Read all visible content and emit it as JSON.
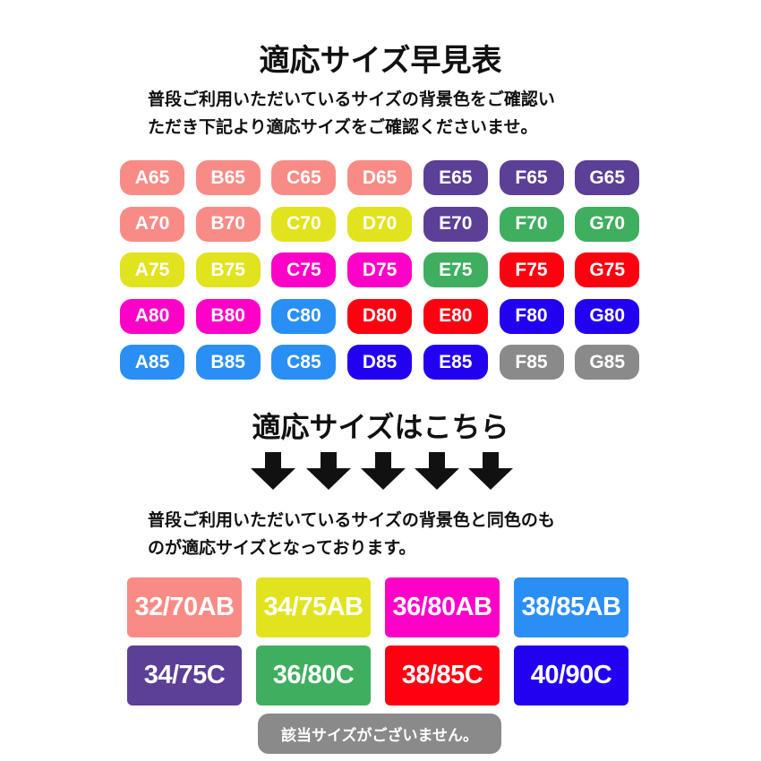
{
  "title": "適応サイズ早見表",
  "intro": [
    "普段ご利用いただいているサイズの背景色をご確認い",
    "ただき下記より適応サイズをご確認くださいませ。"
  ],
  "colors": {
    "pink": "#f98b86",
    "yellow": "#e1e31f",
    "magenta": "#ff00c8",
    "blue": "#2a8ff5",
    "purple": "#5c3f96",
    "green": "#3fae5f",
    "red": "#ff0011",
    "navy": "#2200f0",
    "gray": "#8a8a8a"
  },
  "grid": [
    [
      {
        "label": "A65",
        "color": "pink"
      },
      {
        "label": "B65",
        "color": "pink"
      },
      {
        "label": "C65",
        "color": "pink"
      },
      {
        "label": "D65",
        "color": "pink"
      },
      {
        "label": "E65",
        "color": "purple"
      },
      {
        "label": "F65",
        "color": "purple"
      },
      {
        "label": "G65",
        "color": "purple"
      }
    ],
    [
      {
        "label": "A70",
        "color": "pink"
      },
      {
        "label": "B70",
        "color": "pink"
      },
      {
        "label": "C70",
        "color": "yellow"
      },
      {
        "label": "D70",
        "color": "yellow"
      },
      {
        "label": "E70",
        "color": "purple"
      },
      {
        "label": "F70",
        "color": "green"
      },
      {
        "label": "G70",
        "color": "green"
      }
    ],
    [
      {
        "label": "A75",
        "color": "yellow"
      },
      {
        "label": "B75",
        "color": "yellow"
      },
      {
        "label": "C75",
        "color": "magenta"
      },
      {
        "label": "D75",
        "color": "magenta"
      },
      {
        "label": "E75",
        "color": "green"
      },
      {
        "label": "F75",
        "color": "red"
      },
      {
        "label": "G75",
        "color": "red"
      }
    ],
    [
      {
        "label": "A80",
        "color": "magenta"
      },
      {
        "label": "B80",
        "color": "magenta"
      },
      {
        "label": "C80",
        "color": "blue"
      },
      {
        "label": "D80",
        "color": "red"
      },
      {
        "label": "E80",
        "color": "red"
      },
      {
        "label": "F80",
        "color": "navy"
      },
      {
        "label": "G80",
        "color": "navy"
      }
    ],
    [
      {
        "label": "A85",
        "color": "blue"
      },
      {
        "label": "B85",
        "color": "blue"
      },
      {
        "label": "C85",
        "color": "blue"
      },
      {
        "label": "D85",
        "color": "navy"
      },
      {
        "label": "E85",
        "color": "navy"
      },
      {
        "label": "F85",
        "color": "gray"
      },
      {
        "label": "G85",
        "color": "gray"
      }
    ]
  ],
  "subtitle": "適応サイズはこちら",
  "arrow_icon": "arrow-down-icon",
  "outro": [
    "普段ご利用いただいているサイズの背景色と同色のも",
    "のが適応サイズとなっております。"
  ],
  "sizes": [
    {
      "label": "32/70AB",
      "color": "pink"
    },
    {
      "label": "34/75AB",
      "color": "yellow"
    },
    {
      "label": "36/80AB",
      "color": "magenta"
    },
    {
      "label": "38/85AB",
      "color": "blue"
    },
    {
      "label": "34/75C",
      "color": "purple"
    },
    {
      "label": "36/80C",
      "color": "green"
    },
    {
      "label": "38/85C",
      "color": "red"
    },
    {
      "label": "40/90C",
      "color": "navy"
    }
  ],
  "none_label": "該当サイズがございません。"
}
